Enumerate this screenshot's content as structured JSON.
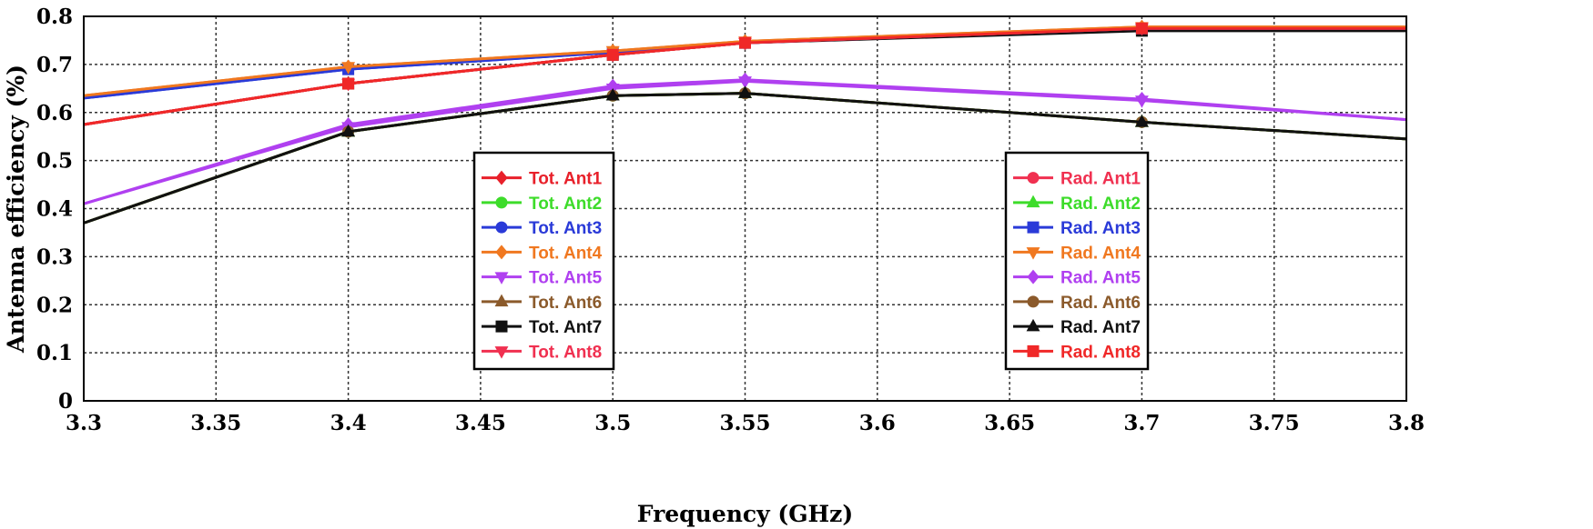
{
  "chart_data": {
    "type": "line",
    "xlabel": "Frequency (GHz)",
    "ylabel": "Antenna efficiency (%)",
    "xlim": [
      3.3,
      3.8
    ],
    "ylim": [
      0,
      0.8
    ],
    "x_ticks": [
      "3.3",
      "3.35",
      "3.4",
      "3.45",
      "3.5",
      "3.55",
      "3.6",
      "3.65",
      "3.7",
      "3.75",
      "3.8"
    ],
    "y_ticks": [
      "0",
      "0.1",
      "0.2",
      "0.3",
      "0.4",
      "0.5",
      "0.6",
      "0.7",
      "0.8"
    ],
    "grid": true,
    "x": [
      3.3,
      3.4,
      3.5,
      3.55,
      3.7,
      3.8
    ],
    "series": [
      {
        "name": "Tot. Ant1",
        "color": "#e8202a",
        "marker": "diamond",
        "values": [
          0.575,
          0.66,
          0.72,
          0.745,
          0.775,
          0.775
        ]
      },
      {
        "name": "Tot. Ant2",
        "color": "#3ddc2a",
        "marker": "circle",
        "values": [
          0.37,
          0.56,
          0.635,
          0.64,
          0.58,
          0.545
        ]
      },
      {
        "name": "Tot. Ant3",
        "color": "#2a3ad8",
        "marker": "circle",
        "values": [
          0.63,
          0.69,
          0.725,
          0.745,
          0.775,
          0.775
        ]
      },
      {
        "name": "Tot. Ant4",
        "color": "#f07820",
        "marker": "diamond",
        "values": [
          0.635,
          0.695,
          0.728,
          0.748,
          0.778,
          0.778
        ]
      },
      {
        "name": "Tot. Ant5",
        "color": "#b040f0",
        "marker": "triangle-down",
        "values": [
          0.41,
          0.57,
          0.65,
          0.665,
          0.625,
          0.585
        ]
      },
      {
        "name": "Tot. Ant6",
        "color": "#8b5a2b",
        "marker": "triangle-up",
        "values": [
          0.37,
          0.56,
          0.635,
          0.64,
          0.58,
          0.545
        ]
      },
      {
        "name": "Tot. Ant7",
        "color": "#111111",
        "marker": "square",
        "values": [
          0.575,
          0.66,
          0.72,
          0.745,
          0.77,
          0.77
        ]
      },
      {
        "name": "Tot. Ant8",
        "color": "#f03050",
        "marker": "triangle-down",
        "values": [
          0.575,
          0.66,
          0.72,
          0.745,
          0.775,
          0.775
        ]
      },
      {
        "name": "Rad. Ant1",
        "color": "#f03050",
        "marker": "circle",
        "values": [
          0.575,
          0.66,
          0.72,
          0.745,
          0.775,
          0.775
        ]
      },
      {
        "name": "Rad. Ant2",
        "color": "#3ddc2a",
        "marker": "triangle-up",
        "values": [
          0.37,
          0.56,
          0.635,
          0.64,
          0.58,
          0.545
        ]
      },
      {
        "name": "Rad. Ant3",
        "color": "#2a3ad8",
        "marker": "square",
        "values": [
          0.63,
          0.69,
          0.725,
          0.745,
          0.775,
          0.775
        ]
      },
      {
        "name": "Rad. Ant4",
        "color": "#f07820",
        "marker": "triangle-down",
        "values": [
          0.635,
          0.695,
          0.728,
          0.748,
          0.778,
          0.778
        ]
      },
      {
        "name": "Rad. Ant5",
        "color": "#b040f0",
        "marker": "diamond",
        "values": [
          0.41,
          0.575,
          0.655,
          0.668,
          0.628,
          0.585
        ]
      },
      {
        "name": "Rad. Ant6",
        "color": "#8b5a2b",
        "marker": "circle",
        "values": [
          0.37,
          0.56,
          0.635,
          0.64,
          0.58,
          0.545
        ]
      },
      {
        "name": "Rad. Ant7",
        "color": "#111111",
        "marker": "triangle-up",
        "values": [
          0.37,
          0.56,
          0.635,
          0.64,
          0.58,
          0.545
        ]
      },
      {
        "name": "Rad. Ant8",
        "color": "#f02828",
        "marker": "square",
        "values": [
          0.575,
          0.66,
          0.72,
          0.745,
          0.775,
          0.775
        ]
      }
    ],
    "legend": {
      "left_entries": [
        "Tot. Ant1",
        "Tot. Ant2",
        "Tot. Ant3",
        "Tot. Ant4",
        "Tot. Ant5",
        "Tot. Ant6",
        "Tot. Ant7",
        "Tot. Ant8"
      ],
      "right_entries": [
        "Rad. Ant1",
        "Rad. Ant2",
        "Rad. Ant3",
        "Rad. Ant4",
        "Rad. Ant5",
        "Rad. Ant6",
        "Rad. Ant7",
        "Rad. Ant8"
      ],
      "placement": "center-inside, two boxes"
    }
  }
}
